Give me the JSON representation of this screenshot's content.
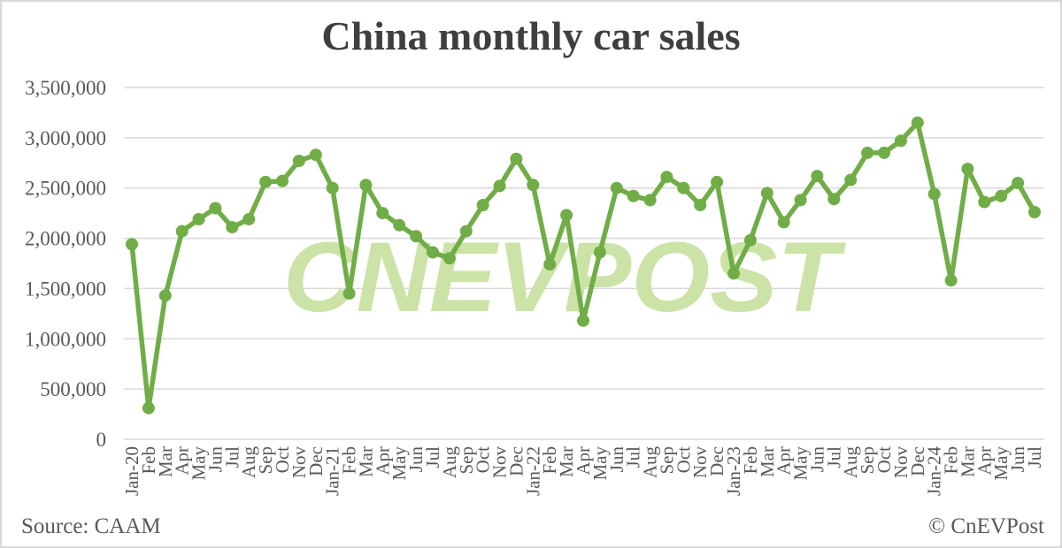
{
  "header": {
    "title": "China monthly car sales"
  },
  "footer": {
    "source": "Source: CAAM",
    "copyright": "© CnEVPost"
  },
  "watermark": "CNEVPOST",
  "colors": {
    "line": "#70ad47",
    "marker": "#6aaa45",
    "watermark": "#cbe3a6",
    "grid": "#d9d9d9",
    "axis_text": "#595959",
    "title_text": "#3f3f3f"
  },
  "chart_data": {
    "type": "line",
    "title": "China monthly car sales",
    "xlabel": "",
    "ylabel": "",
    "ylim": [
      0,
      3500000
    ],
    "ytick_step": 500000,
    "ytick_labels": [
      "0",
      "500,000",
      "1,000,000",
      "1,500,000",
      "2,000,000",
      "2,500,000",
      "3,000,000",
      "3,500,000"
    ],
    "grid": true,
    "legend": "none",
    "marker": "circle",
    "categories": [
      "Jan-20",
      "Feb",
      "Mar",
      "Apr",
      "May",
      "Jun",
      "Jul",
      "Aug",
      "Sep",
      "Oct",
      "Nov",
      "Dec",
      "Jan-21",
      "Feb",
      "Mar",
      "Apr",
      "May",
      "Jun",
      "Jul",
      "Aug",
      "Sep",
      "Oct",
      "Nov",
      "Dec",
      "Jan-22",
      "Feb",
      "Mar",
      "Apr",
      "May",
      "Jun",
      "Jul",
      "Aug",
      "Sep",
      "Oct",
      "Nov",
      "Dec",
      "Jan-23",
      "Feb",
      "Mar",
      "Apr",
      "May",
      "Jun",
      "Jul",
      "Aug",
      "Sep",
      "Oct",
      "Nov",
      "Dec",
      "Jan-24",
      "Feb",
      "Mar",
      "Apr",
      "May",
      "Jun",
      "Jul"
    ],
    "values": [
      1940000,
      310000,
      1430000,
      2070000,
      2190000,
      2300000,
      2110000,
      2190000,
      2560000,
      2570000,
      2770000,
      2830000,
      2500000,
      1450000,
      2530000,
      2250000,
      2130000,
      2020000,
      1860000,
      1800000,
      2070000,
      2330000,
      2520000,
      2790000,
      2530000,
      1740000,
      2230000,
      1180000,
      1860000,
      2500000,
      2420000,
      2380000,
      2610000,
      2500000,
      2330000,
      2560000,
      1650000,
      1980000,
      2450000,
      2160000,
      2380000,
      2620000,
      2390000,
      2580000,
      2850000,
      2850000,
      2970000,
      3150000,
      2440000,
      1580000,
      2690000,
      2360000,
      2420000,
      2550000,
      2260000
    ]
  }
}
